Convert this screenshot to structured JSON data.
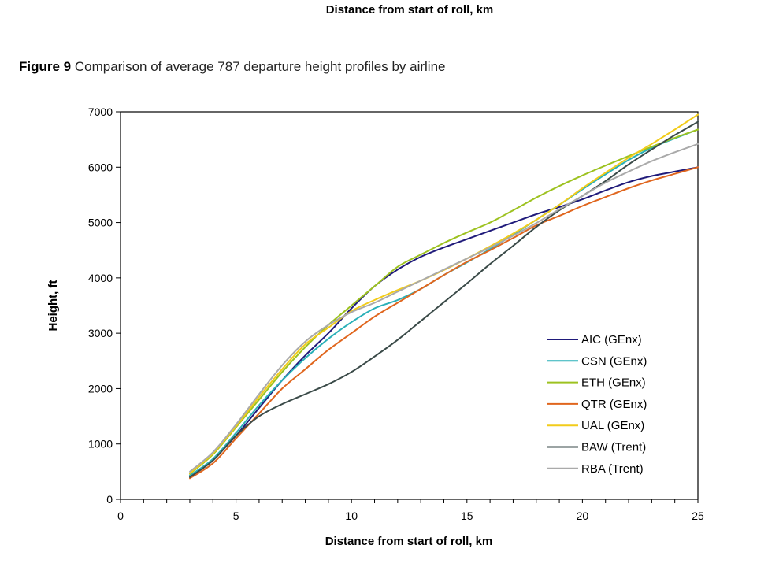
{
  "top_caption": "Distance from start of roll, km",
  "figure": {
    "label": "Figure 9",
    "title": "Comparison of average 787 departure height profiles by airline"
  },
  "chart_data": {
    "type": "line",
    "xlabel": "Distance from start of roll, km",
    "ylabel": "Height, ft",
    "xlim": [
      0,
      25
    ],
    "ylim": [
      0,
      7000
    ],
    "xticks": [
      0,
      5,
      10,
      15,
      20,
      25
    ],
    "yticks": [
      0,
      1000,
      2000,
      3000,
      4000,
      5000,
      6000,
      7000
    ],
    "grid": false,
    "legend_position": "right",
    "x": [
      3,
      4,
      5,
      6,
      7,
      8,
      9,
      10,
      11,
      12,
      13,
      14,
      15,
      16,
      17,
      18,
      19,
      20,
      21,
      22,
      23,
      24,
      25
    ],
    "series": [
      {
        "name": "AIC (GEnx)",
        "color": "#1f1a7a",
        "values": [
          420,
          720,
          1150,
          1650,
          2150,
          2600,
          3000,
          3450,
          3850,
          4150,
          4380,
          4550,
          4700,
          4850,
          5000,
          5150,
          5280,
          5420,
          5580,
          5730,
          5840,
          5920,
          6000
        ]
      },
      {
        "name": "CSN (GEnx)",
        "color": "#2ab0b8",
        "values": [
          430,
          730,
          1200,
          1700,
          2150,
          2550,
          2900,
          3200,
          3450,
          3600,
          3800,
          4050,
          4280,
          4520,
          4780,
          5050,
          5320,
          5600,
          5870,
          6130,
          6350,
          6520,
          6680
        ]
      },
      {
        "name": "ETH (GEnx)",
        "color": "#9dc220",
        "values": [
          460,
          810,
          1300,
          1800,
          2300,
          2750,
          3150,
          3500,
          3850,
          4200,
          4420,
          4630,
          4820,
          5000,
          5220,
          5450,
          5660,
          5850,
          6030,
          6200,
          6370,
          6530,
          6680
        ]
      },
      {
        "name": "QTR (GEnx)",
        "color": "#e0661e",
        "values": [
          380,
          650,
          1100,
          1550,
          2000,
          2350,
          2700,
          3000,
          3300,
          3550,
          3800,
          4050,
          4290,
          4500,
          4720,
          4950,
          5120,
          5300,
          5460,
          5620,
          5760,
          5880,
          6000
        ]
      },
      {
        "name": "UAL (GEnx)",
        "color": "#f2cc1a",
        "values": [
          470,
          830,
          1320,
          1850,
          2350,
          2800,
          3100,
          3400,
          3600,
          3780,
          3950,
          4140,
          4350,
          4570,
          4800,
          5050,
          5320,
          5620,
          5900,
          6170,
          6420,
          6680,
          6950
        ]
      },
      {
        "name": "BAW (Trent)",
        "color": "#3a4a48",
        "values": [
          400,
          700,
          1150,
          1500,
          1720,
          1900,
          2080,
          2300,
          2580,
          2880,
          3220,
          3560,
          3900,
          4250,
          4580,
          4920,
          5220,
          5480,
          5750,
          6050,
          6320,
          6580,
          6820
        ]
      },
      {
        "name": "RBA (Trent)",
        "color": "#aaaaaa",
        "values": [
          500,
          850,
          1350,
          1900,
          2420,
          2850,
          3150,
          3380,
          3550,
          3750,
          3950,
          4150,
          4350,
          4550,
          4760,
          4990,
          5240,
          5480,
          5720,
          5920,
          6110,
          6270,
          6420
        ]
      }
    ]
  }
}
